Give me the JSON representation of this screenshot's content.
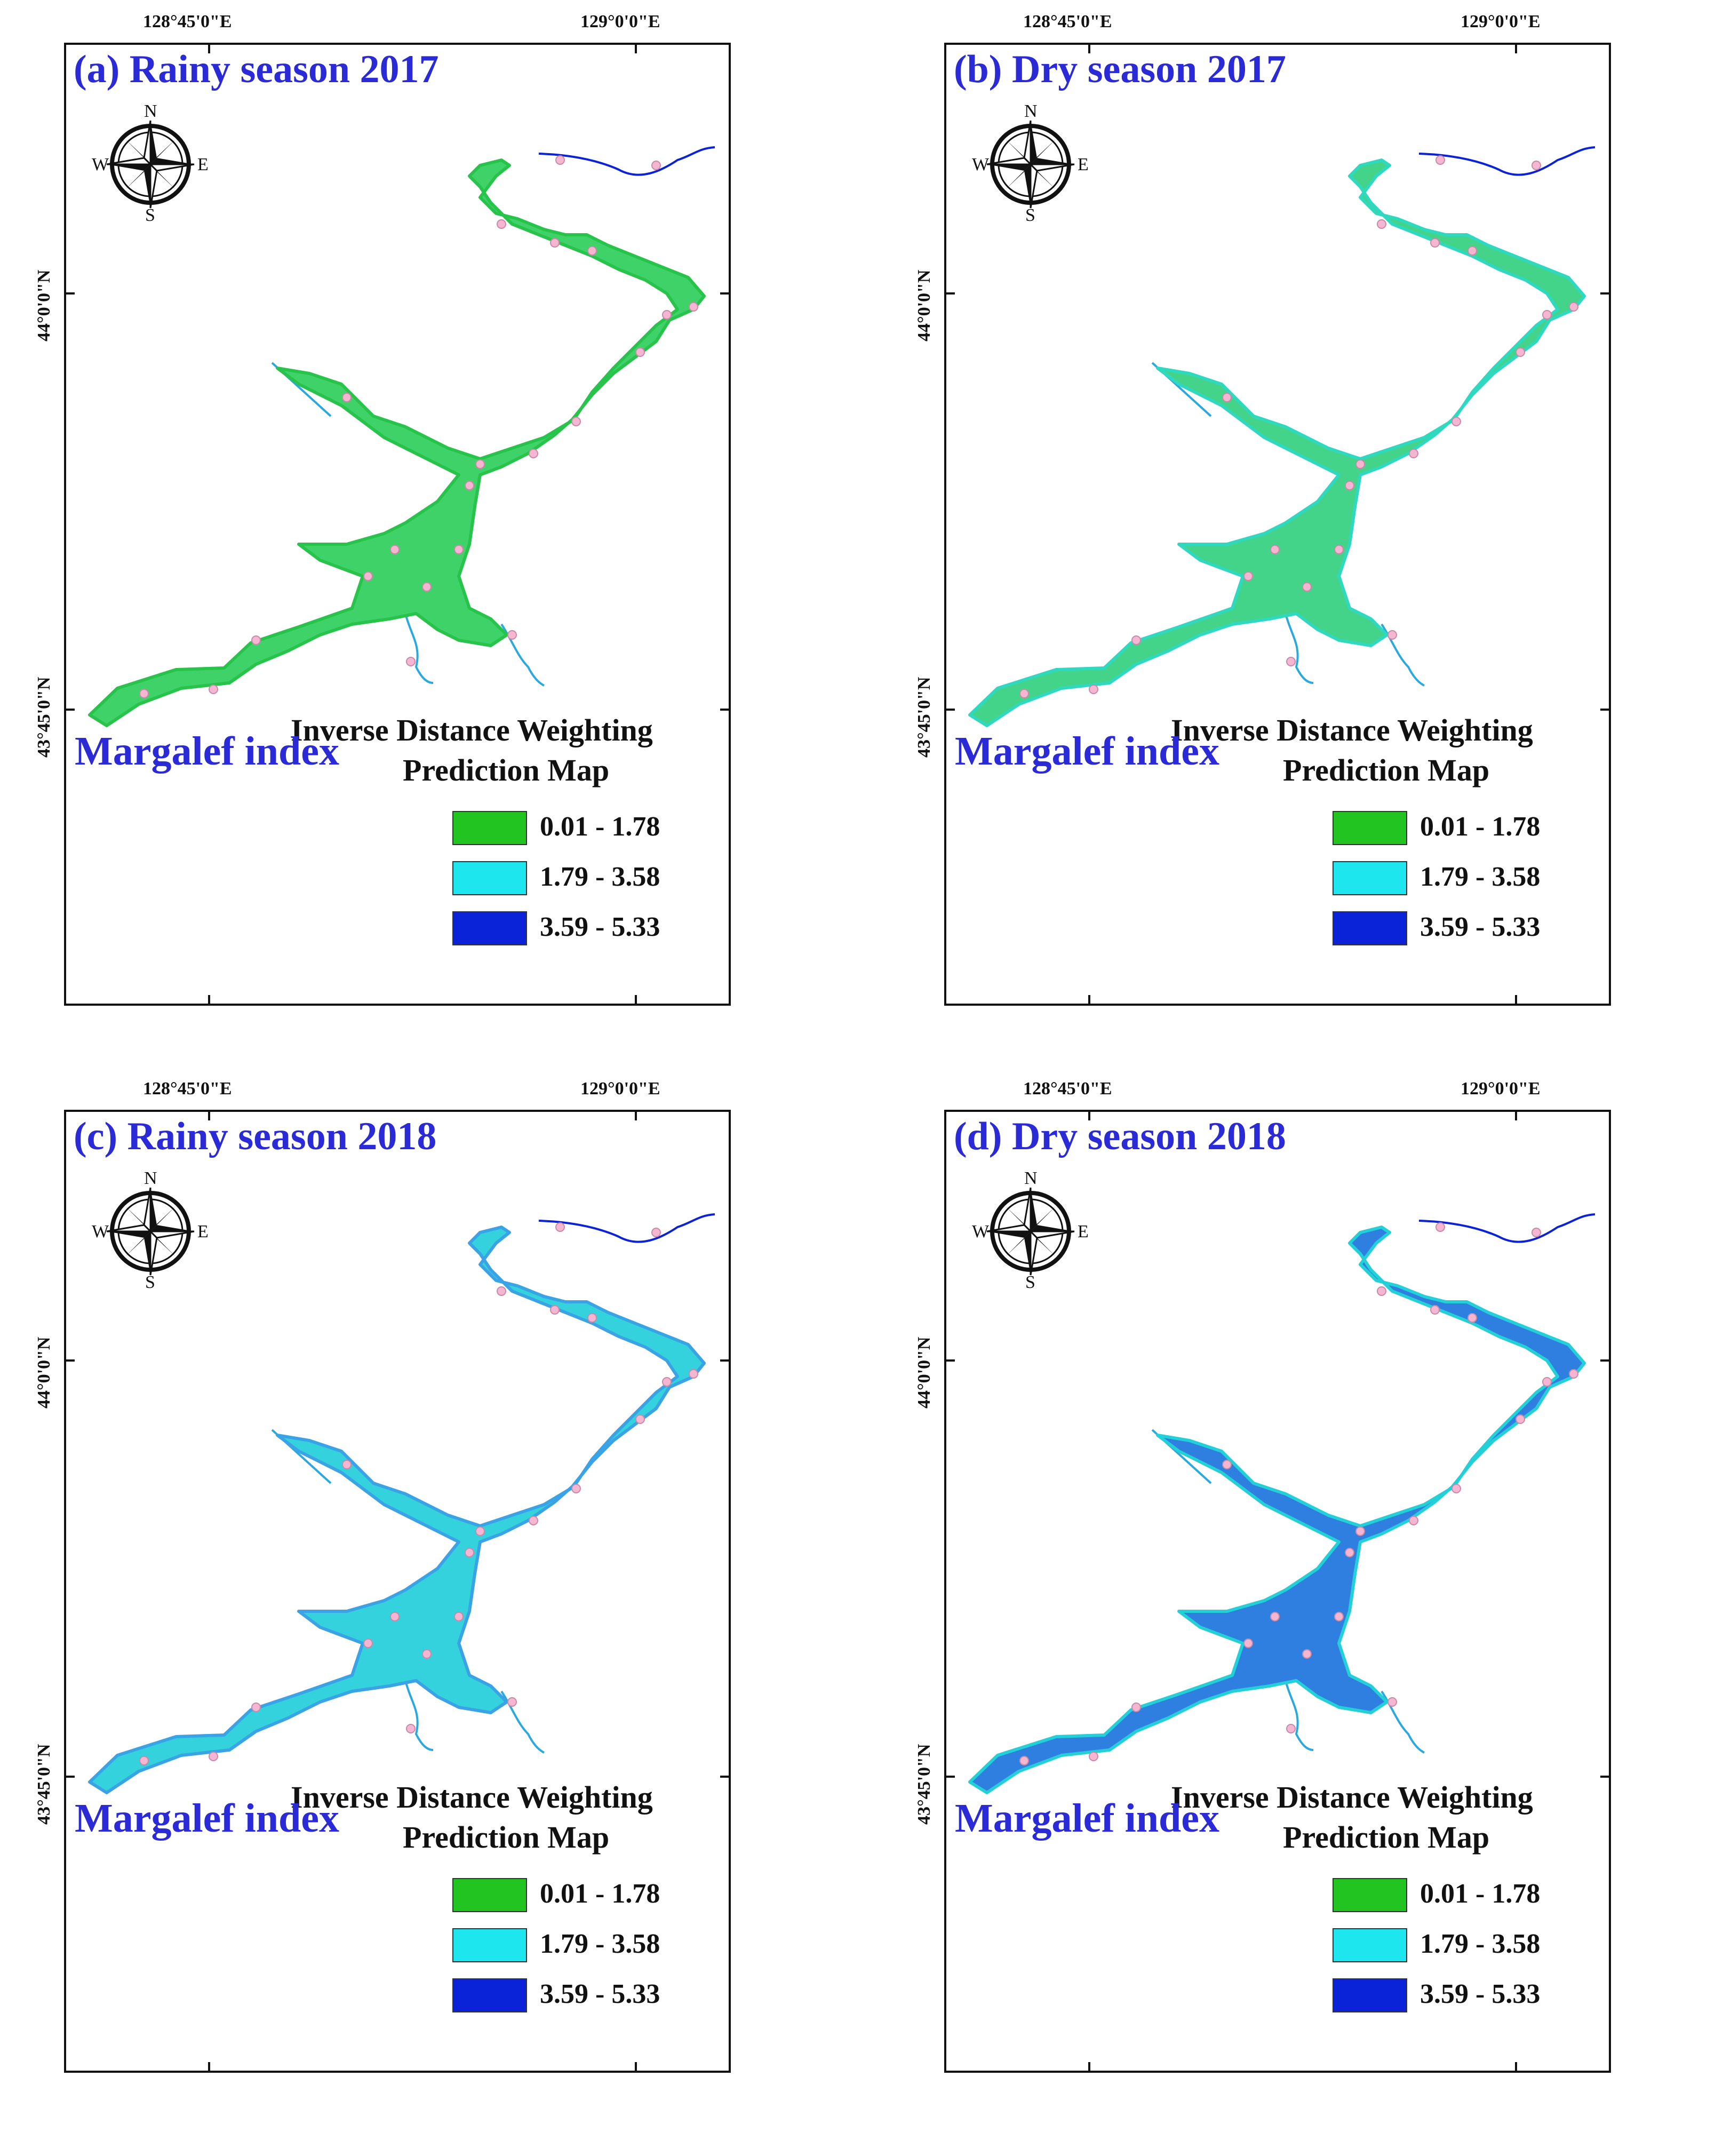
{
  "axis": {
    "lon_left": "128°45'0\"E",
    "lon_right": "129°0'0\"E",
    "lat_top": "44°0'0\"N",
    "lat_bottom": "43°45'0\"N"
  },
  "compass": {
    "n": "N",
    "s": "S",
    "e": "E",
    "w": "W"
  },
  "colors": {
    "class1": "#21c421",
    "class2": "#1ee6ee",
    "class3": "#0a22d8",
    "sample": "#f5b6d2"
  },
  "panels": [
    {
      "title": "(a) Rainy season 2017",
      "index_label": "Margalef index",
      "method_line1": "Inverse Distance Weighting",
      "method_line2": "Prediction Map",
      "legend": [
        "0.01 - 1.78",
        "1.79 - 3.58",
        "3.59 - 5.33"
      ],
      "fill": "#3fd269",
      "edge": "#27c34a"
    },
    {
      "title": "(b) Dry season 2017",
      "index_label": "Margalef index",
      "method_line1": "Inverse Distance Weighting",
      "method_line2": "Prediction Map",
      "legend": [
        "0.01 - 1.78",
        "1.79 - 3.58",
        "3.59 - 5.33"
      ],
      "fill": "#43d48a",
      "edge": "#2fd9c0"
    },
    {
      "title": "(c) Rainy season 2018",
      "index_label": "Margalef index",
      "method_line1": "Inverse Distance Weighting",
      "method_line2": "Prediction Map",
      "legend": [
        "0.01 - 1.78",
        "1.79 - 3.58",
        "3.59 - 5.33"
      ],
      "fill": "#33d2dc",
      "edge": "#3aa3e6"
    },
    {
      "title": "(d) Dry season 2018",
      "index_label": "Margalef index",
      "method_line1": "Inverse Distance Weighting",
      "method_line2": "Prediction Map",
      "legend": [
        "0.01 - 1.78",
        "1.79 - 3.58",
        "3.59 - 5.33"
      ],
      "fill": "#2f7fe0",
      "edge": "#24d0d8"
    }
  ]
}
